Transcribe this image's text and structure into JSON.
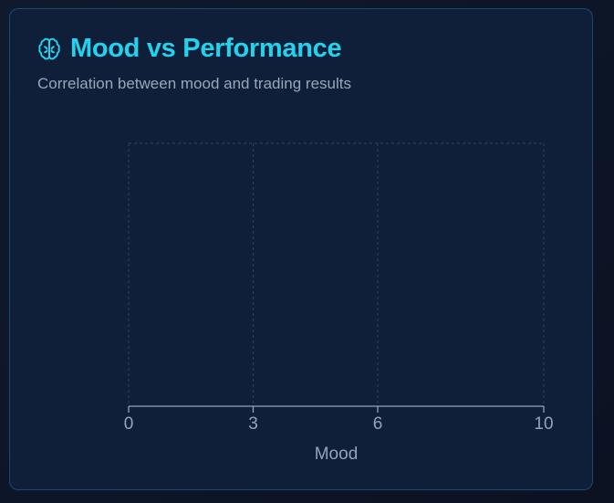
{
  "card": {
    "title": "Mood vs Performance",
    "subtitle": "Correlation between mood and trading results",
    "icon": "brain-icon"
  },
  "colors": {
    "accent": "#22d3ee",
    "grid": "#2c3d56",
    "axis": "#94a3b8",
    "text_muted": "#9aa7b8"
  },
  "chart_data": {
    "type": "scatter",
    "title": "Mood vs Performance",
    "subtitle": "Correlation between mood and trading results",
    "xlabel": "Mood",
    "ylabel": "",
    "xlim": [
      0,
      10
    ],
    "xticks": [
      0,
      3,
      6,
      10
    ],
    "grid": true,
    "series": [
      {
        "x": [],
        "y": []
      }
    ]
  }
}
